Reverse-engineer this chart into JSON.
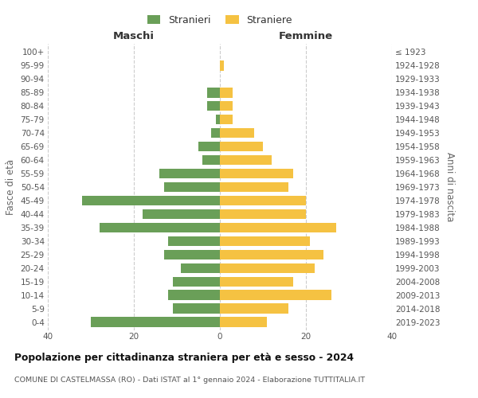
{
  "age_groups": [
    "0-4",
    "5-9",
    "10-14",
    "15-19",
    "20-24",
    "25-29",
    "30-34",
    "35-39",
    "40-44",
    "45-49",
    "50-54",
    "55-59",
    "60-64",
    "65-69",
    "70-74",
    "75-79",
    "80-84",
    "85-89",
    "90-94",
    "95-99",
    "100+"
  ],
  "birth_years": [
    "2019-2023",
    "2014-2018",
    "2009-2013",
    "2004-2008",
    "1999-2003",
    "1994-1998",
    "1989-1993",
    "1984-1988",
    "1979-1983",
    "1974-1978",
    "1969-1973",
    "1964-1968",
    "1959-1963",
    "1954-1958",
    "1949-1953",
    "1944-1948",
    "1939-1943",
    "1934-1938",
    "1929-1933",
    "1924-1928",
    "≤ 1923"
  ],
  "males": [
    30,
    11,
    12,
    11,
    9,
    13,
    12,
    28,
    18,
    32,
    13,
    14,
    4,
    5,
    2,
    1,
    3,
    3,
    0,
    0,
    0
  ],
  "females": [
    11,
    16,
    26,
    17,
    22,
    24,
    21,
    27,
    20,
    20,
    16,
    17,
    12,
    10,
    8,
    3,
    3,
    3,
    0,
    1,
    0
  ],
  "male_color": "#6a9f58",
  "female_color": "#f5c242",
  "background_color": "#ffffff",
  "grid_color": "#cccccc",
  "title": "Popolazione per cittadinanza straniera per età e sesso - 2024",
  "subtitle": "COMUNE DI CASTELMASSA (RO) - Dati ISTAT al 1° gennaio 2024 - Elaborazione TUTTITALIA.IT",
  "xlabel_left": "Maschi",
  "xlabel_right": "Femmine",
  "ylabel_left": "Fasce di età",
  "ylabel_right": "Anni di nascita",
  "legend_male": "Stranieri",
  "legend_female": "Straniere",
  "xlim": 40,
  "bar_height": 0.75
}
